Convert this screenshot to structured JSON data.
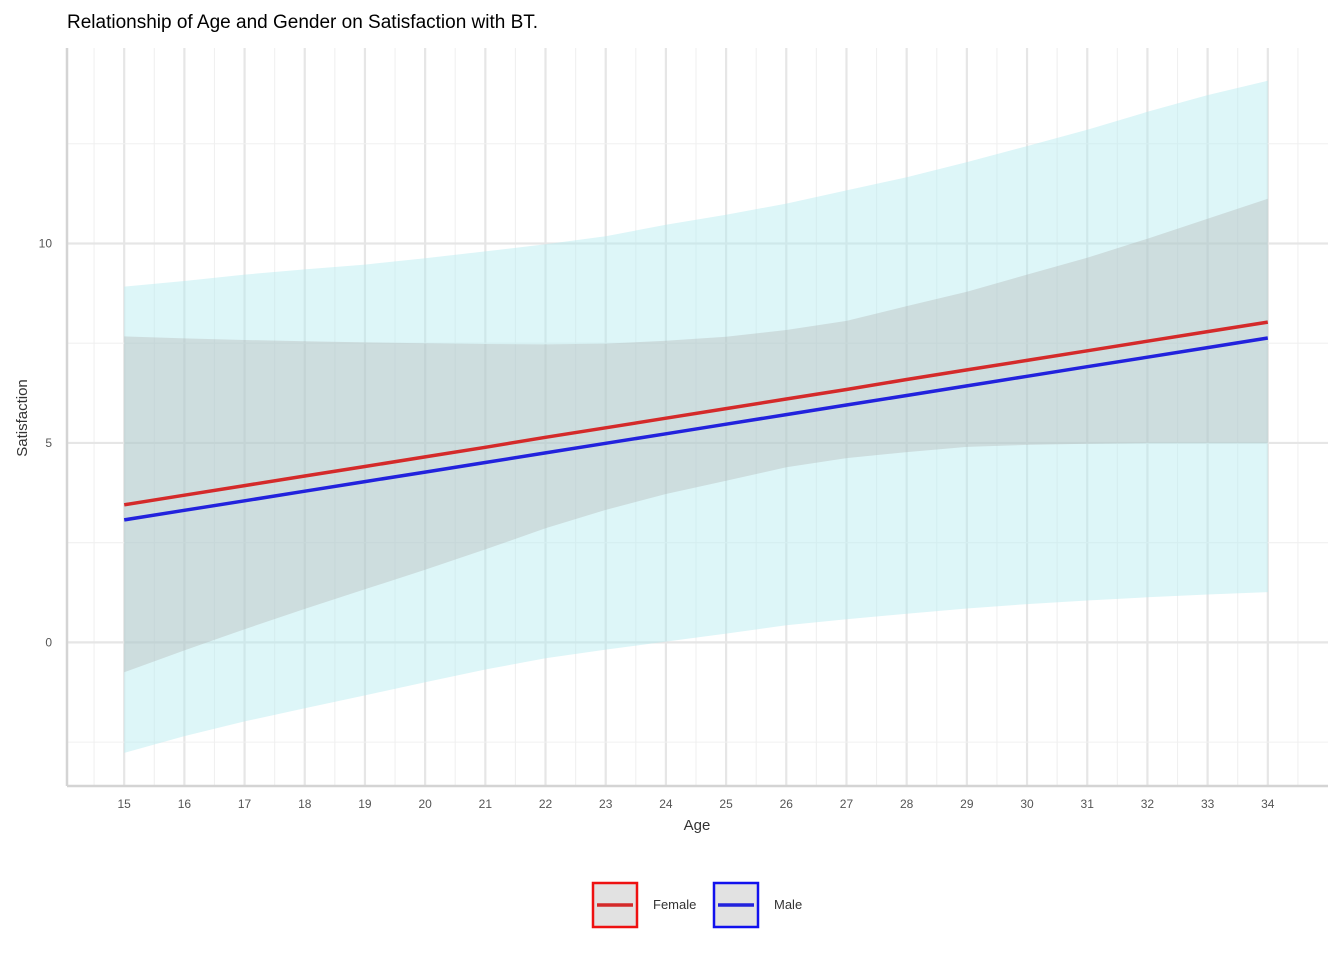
{
  "chart_data": {
    "type": "line",
    "title": "Relationship of Age and Gender on Satisfaction with BT.",
    "xlabel": "Age",
    "ylabel": "Satisfaction",
    "xlim": [
      14.05,
      35
    ],
    "ylim": [
      -3.6,
      14.9
    ],
    "xticks": [
      15,
      16,
      17,
      18,
      19,
      20,
      21,
      22,
      23,
      24,
      25,
      26,
      27,
      28,
      29,
      30,
      31,
      32,
      33,
      34
    ],
    "yticks": [
      0,
      5,
      10
    ],
    "y_minor_ticks": [
      -2.5,
      2.5,
      7.5,
      12.5
    ],
    "grid": true,
    "legend_position": "bottom",
    "x": [
      15,
      16,
      17,
      18,
      19,
      20,
      21,
      22,
      23,
      24,
      25,
      26,
      27,
      28,
      29,
      30,
      31,
      32,
      33,
      34
    ],
    "series": [
      {
        "name": "Female",
        "color": "#d42a2a",
        "band_color": "#b0b0b0",
        "values": [
          3.45,
          3.69,
          3.93,
          4.17,
          4.41,
          4.65,
          4.89,
          5.14,
          5.38,
          5.62,
          5.86,
          6.1,
          6.34,
          6.59,
          6.83,
          7.07,
          7.31,
          7.55,
          7.79,
          8.03
        ],
        "lower": [
          -0.75,
          -0.2,
          0.33,
          0.84,
          1.33,
          1.82,
          2.33,
          2.86,
          3.32,
          3.72,
          4.05,
          4.39,
          4.62,
          4.77,
          4.9,
          4.95,
          4.98,
          5.0,
          5.0,
          5.0
        ],
        "upper": [
          7.67,
          7.62,
          7.58,
          7.55,
          7.52,
          7.5,
          7.48,
          7.47,
          7.49,
          7.56,
          7.66,
          7.83,
          8.06,
          8.43,
          8.79,
          9.22,
          9.64,
          10.12,
          10.62,
          11.12
        ]
      },
      {
        "name": "Male",
        "color": "#2222dd",
        "band_color": "#b3ecef",
        "values": [
          3.07,
          3.31,
          3.55,
          3.79,
          4.03,
          4.27,
          4.51,
          4.75,
          4.99,
          5.23,
          5.47,
          5.71,
          5.95,
          6.19,
          6.43,
          6.67,
          6.91,
          7.15,
          7.39,
          7.63
        ],
        "lower": [
          -2.77,
          -2.35,
          -1.98,
          -1.65,
          -1.33,
          -1.0,
          -0.68,
          -0.4,
          -0.18,
          0.02,
          0.22,
          0.43,
          0.58,
          0.72,
          0.85,
          0.96,
          1.05,
          1.13,
          1.2,
          1.26
        ],
        "upper": [
          8.92,
          9.06,
          9.22,
          9.35,
          9.47,
          9.63,
          9.8,
          9.98,
          10.18,
          10.47,
          10.72,
          11.0,
          11.33,
          11.66,
          12.04,
          12.44,
          12.85,
          13.3,
          13.72,
          14.08
        ]
      }
    ]
  }
}
